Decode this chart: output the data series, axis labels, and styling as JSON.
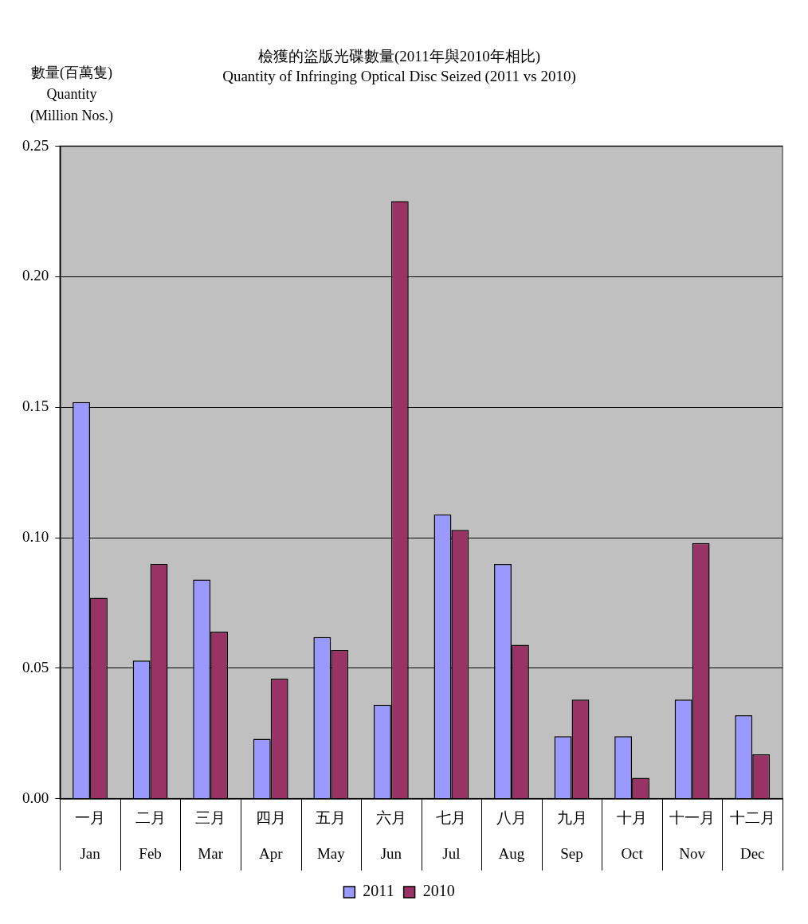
{
  "chart_data": {
    "type": "bar",
    "title": "檢獲的盜版光碟數量(2011年與2010年相比)",
    "subtitle": "Quantity of Infringing Optical Disc Seized (2011 vs 2010)",
    "ylabel": "數量(百萬隻)\nQuantity\n(Million Nos.)",
    "categories": [
      "一月\nJan",
      "二月\nFeb",
      "三月\nMar",
      "四月\nApr",
      "五月\nMay",
      "六月\nJun",
      "七月\nJul",
      "八月\nAug",
      "九月\nSep",
      "十月\nOct",
      "十一月\nNov",
      "十二月\nDec"
    ],
    "series": [
      {
        "name": "2011",
        "color": "#9999ff",
        "values": [
          0.152,
          0.053,
          0.084,
          0.023,
          0.062,
          0.036,
          0.109,
          0.09,
          0.024,
          0.024,
          0.038,
          0.032
        ]
      },
      {
        "name": "2010",
        "color": "#993366",
        "values": [
          0.077,
          0.09,
          0.064,
          0.046,
          0.057,
          0.229,
          0.103,
          0.059,
          0.038,
          0.008,
          0.098,
          0.017
        ]
      }
    ],
    "ylim": [
      0,
      0.25
    ],
    "yticks": [
      {
        "value": 0,
        "label": "0.00"
      },
      {
        "value": 0.05,
        "label": "0.05"
      },
      {
        "value": 0.1,
        "label": "0.10"
      },
      {
        "value": 0.15,
        "label": "0.15"
      },
      {
        "value": 0.2,
        "label": "0.20"
      },
      {
        "value": 0.25,
        "label": "0.25"
      }
    ],
    "grid": "y",
    "legend": "bottom"
  }
}
